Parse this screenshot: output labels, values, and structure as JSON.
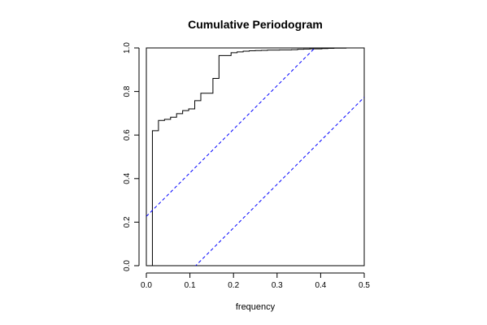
{
  "chart_data": {
    "type": "line",
    "title": "Cumulative Periodogram",
    "xlabel": "frequency",
    "ylabel": "",
    "xlim": [
      0,
      0.5
    ],
    "ylim": [
      0,
      1
    ],
    "x_ticks": [
      0,
      0.1,
      0.2,
      0.3,
      0.4,
      0.5
    ],
    "x_tick_labels": [
      "0.0",
      "0.1",
      "0.2",
      "0.3",
      "0.4",
      "0.5"
    ],
    "y_ticks": [
      0,
      0.2,
      0.4,
      0.6,
      0.8,
      1.0
    ],
    "y_tick_labels": [
      "0.0",
      "0.2",
      "0.4",
      "0.6",
      "0.8",
      "1.0"
    ],
    "grid": false,
    "series": [
      {
        "style": "step",
        "color": "#000000",
        "x": [
          0.0139,
          0.0139,
          0.0278,
          0.0417,
          0.0556,
          0.0694,
          0.0833,
          0.0972,
          0.1111,
          0.125,
          0.1389,
          0.1528,
          0.1667,
          0.1806,
          0.1944,
          0.2083,
          0.2222,
          0.2361,
          0.25,
          0.2639,
          0.2778,
          0.2917,
          0.3056,
          0.3194,
          0.3333,
          0.3472,
          0.3611,
          0.375,
          0.3889,
          0.4028,
          0.4167,
          0.4306,
          0.4444,
          0.4583,
          0.4722,
          0.4861,
          0.5
        ],
        "y": [
          0.0,
          0.62,
          0.667,
          0.672,
          0.682,
          0.698,
          0.712,
          0.72,
          0.758,
          0.792,
          0.792,
          0.86,
          0.965,
          0.965,
          0.978,
          0.982,
          0.985,
          0.987,
          0.988,
          0.989,
          0.99,
          0.99,
          0.991,
          0.991,
          0.992,
          0.994,
          0.995,
          0.996,
          0.996,
          0.997,
          0.998,
          0.999,
          0.999,
          1.0,
          1.0,
          1.0,
          1.0
        ]
      },
      {
        "style": "dashed",
        "color": "#0000ff",
        "x": [
          0,
          0.5
        ],
        "y": [
          0.2265,
          1.2265
        ]
      },
      {
        "style": "dashed",
        "color": "#0000ff",
        "x": [
          0,
          0.5
        ],
        "y": [
          -0.2265,
          0.7735
        ]
      }
    ]
  }
}
